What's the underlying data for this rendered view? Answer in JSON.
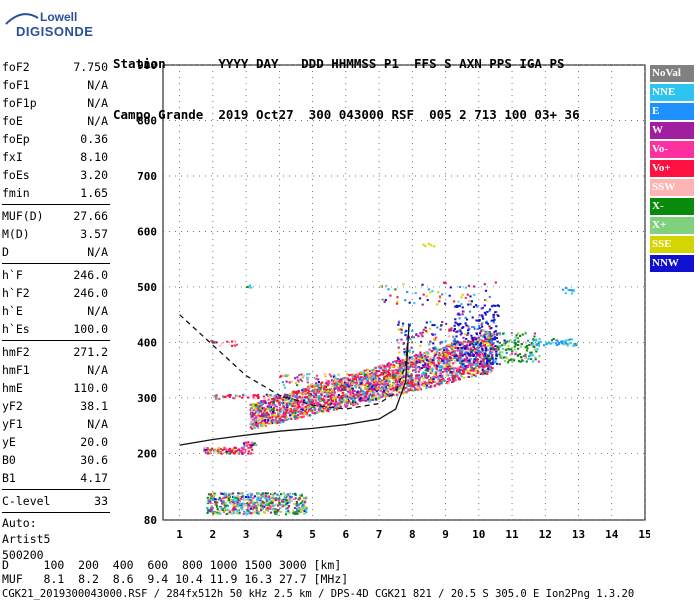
{
  "logo": {
    "line1": "Lowell",
    "line2": "DIGISONDE"
  },
  "header": {
    "row1": "Station       YYYY DAY   DDD HHMMSS P1  FFS S AXN PPS IGA PS",
    "row2": "Campo Grande  2019 Oct27  300 043000 RSF  005 2 713 100 03+ 36"
  },
  "params_group1": [
    {
      "key": "foF2",
      "value": "7.750"
    },
    {
      "key": "foF1",
      "value": "N/A"
    },
    {
      "key": "foF1p",
      "value": "N/A"
    },
    {
      "key": "foE",
      "value": "N/A"
    },
    {
      "key": "foEp",
      "value": "0.36"
    },
    {
      "key": "fxI",
      "value": "8.10"
    },
    {
      "key": "foEs",
      "value": "3.20"
    },
    {
      "key": "fmin",
      "value": "1.65"
    }
  ],
  "params_group2": [
    {
      "key": "MUF(D)",
      "value": "27.66"
    },
    {
      "key": "M(D)",
      "value": "3.57"
    },
    {
      "key": "D",
      "value": "N/A"
    }
  ],
  "params_group3": [
    {
      "key": "h`F",
      "value": "246.0"
    },
    {
      "key": "h`F2",
      "value": "246.0"
    },
    {
      "key": "h`E",
      "value": "N/A"
    },
    {
      "key": "h`Es",
      "value": "100.0"
    }
  ],
  "params_group4": [
    {
      "key": "hmF2",
      "value": "271.2"
    },
    {
      "key": "hmF1",
      "value": "N/A"
    },
    {
      "key": "hmE",
      "value": "110.0"
    },
    {
      "key": "yF2",
      "value": "38.1"
    },
    {
      "key": "yF1",
      "value": "N/A"
    },
    {
      "key": "yE",
      "value": "20.0"
    },
    {
      "key": "B0",
      "value": "30.6"
    },
    {
      "key": "B1",
      "value": "4.17"
    }
  ],
  "params_group5": [
    {
      "key": "C-level",
      "value": "33"
    }
  ],
  "auto_info": [
    "Auto:",
    "Artist5",
    "500200"
  ],
  "legend": [
    {
      "label": "NoVal",
      "color": "#808080"
    },
    {
      "label": "NNE",
      "color": "#2ec4f0"
    },
    {
      "label": "E",
      "color": "#1e90ff"
    },
    {
      "label": "W",
      "color": "#a01ea0"
    },
    {
      "label": "Vo-",
      "color": "#ff30a0"
    },
    {
      "label": "Vo+",
      "color": "#ff1040"
    },
    {
      "label": "SSW",
      "color": "#ffb4b4"
    },
    {
      "label": "X-",
      "color": "#0a8a0a"
    },
    {
      "label": "X+",
      "color": "#80d080"
    },
    {
      "label": "SSE",
      "color": "#d4d400"
    },
    {
      "label": "NNW",
      "color": "#1010d0"
    }
  ],
  "footer": {
    "row1": "D     100  200  400  600  800 1000 1500 3000 [km]",
    "row2": "MUF   8.1  8.2  8.6  9.4 10.4 11.9 16.3 27.7 [MHz]",
    "row3": "CGK21_2019300043000.RSF / 284fx512h 50 kHz 2.5 km / DPS-4D CGK21 821 / 20.5 S 305.0 E Ion2Png 1.3.20"
  },
  "chart_data": {
    "type": "scatter",
    "xlim": [
      0.5,
      15
    ],
    "ylim": [
      80,
      900
    ],
    "x_ticks": [
      1,
      2,
      3,
      4,
      5,
      6,
      7,
      8,
      9,
      10,
      11,
      12,
      13,
      14,
      15
    ],
    "y_ticks": [
      80,
      200,
      300,
      400,
      500,
      600,
      700,
      800,
      900
    ],
    "grid": true,
    "legend_position": "right",
    "echo_clusters": [
      {
        "name": "Es low layer",
        "x_range": [
          1.8,
          4.8
        ],
        "y_range": [
          90,
          135
        ],
        "density": "medium"
      },
      {
        "name": "Es 2nd hop",
        "x_range": [
          1.7,
          3.2
        ],
        "y_range": [
          200,
          212
        ],
        "density": "low"
      },
      {
        "name": "F2 trace",
        "x_range": [
          3.0,
          10.5
        ],
        "y_range": [
          240,
          360
        ],
        "density": "high"
      },
      {
        "name": "F2 upper",
        "x_range": [
          7.5,
          12.8
        ],
        "y_range": [
          300,
          480
        ],
        "density": "medium"
      }
    ],
    "profile_curve": [
      [
        1.0,
        215
      ],
      [
        2.0,
        225
      ],
      [
        3.0,
        233
      ],
      [
        4.0,
        240
      ],
      [
        5.0,
        245
      ],
      [
        6.0,
        252
      ],
      [
        7.0,
        262
      ],
      [
        7.5,
        280
      ],
      [
        7.8,
        330
      ],
      [
        7.9,
        430
      ]
    ],
    "virtual_height_curve": [
      [
        1.0,
        450
      ],
      [
        2.0,
        395
      ],
      [
        3.0,
        340
      ],
      [
        4.0,
        305
      ],
      [
        5.0,
        287
      ],
      [
        6.0,
        280
      ],
      [
        7.0,
        290
      ],
      [
        7.5,
        310
      ],
      [
        7.8,
        360
      ],
      [
        7.9,
        430
      ]
    ]
  }
}
